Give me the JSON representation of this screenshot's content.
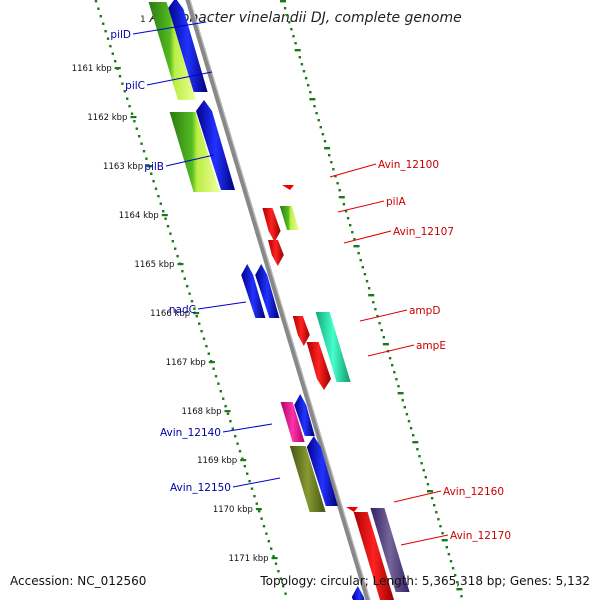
{
  "title": {
    "index": "1",
    "text": "Azotobacter vinelandii DJ, complete genome"
  },
  "footer": {
    "accession": "Accession: NC_012560",
    "summary": "Topology: circular; Length: 5,365,318 bp; Genes: 5,132"
  },
  "ticks": [
    {
      "label": "1161 kbp",
      "kb": 1161
    },
    {
      "label": "1162 kbp",
      "kb": 1162
    },
    {
      "label": "1163 kbp",
      "kb": 1163
    },
    {
      "label": "1164 kbp",
      "kb": 1164
    },
    {
      "label": "1165 kbp",
      "kb": 1165
    },
    {
      "label": "1166 kbp",
      "kb": 1166
    },
    {
      "label": "1167 kbp",
      "kb": 1167
    },
    {
      "label": "1168 kbp",
      "kb": 1168
    },
    {
      "label": "1169 kbp",
      "kb": 1169
    },
    {
      "label": "1170 kbp",
      "kb": 1170
    },
    {
      "label": "1171 kbp",
      "kb": 1171
    }
  ],
  "gene_labels_left": [
    {
      "name": "pilD",
      "color": "#0000aa"
    },
    {
      "name": "pilC",
      "color": "#0000aa"
    },
    {
      "name": "pilB",
      "color": "#0000aa"
    },
    {
      "name": "nadC",
      "color": "#0000aa"
    },
    {
      "name": "Avin_12140",
      "color": "#0000aa"
    },
    {
      "name": "Avin_12150",
      "color": "#0000aa"
    }
  ],
  "gene_labels_right": [
    {
      "name": "Avin_12100",
      "color": "#cc0000"
    },
    {
      "name": "pilA",
      "color": "#cc0000"
    },
    {
      "name": "Avin_12107",
      "color": "#cc0000"
    },
    {
      "name": "ampD",
      "color": "#cc0000"
    },
    {
      "name": "ampE",
      "color": "#cc0000"
    },
    {
      "name": "Avin_12160",
      "color": "#cc0000"
    },
    {
      "name": "Avin_12170",
      "color": "#cc0000"
    }
  ],
  "colors": {
    "backbone": "#888888",
    "tick_dots": "#1a7a1a",
    "reverse_strand_gene": "#0000ee",
    "forward_strand_gene": "#ee0000",
    "green_track": "#3a9a1a",
    "lime_track": "#aaee33",
    "teal_track": "#22ddaa",
    "magenta_track": "#ee1199",
    "olive_track": "#667722",
    "purple_track": "#554488"
  }
}
